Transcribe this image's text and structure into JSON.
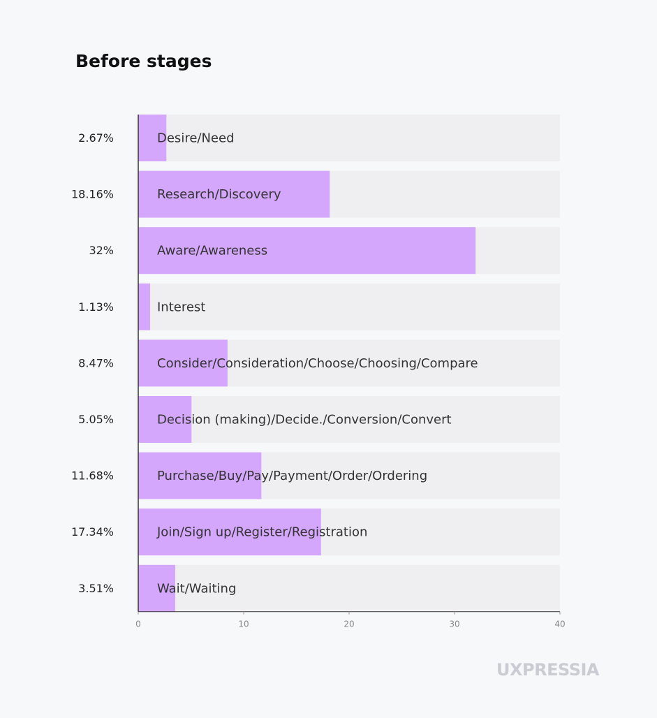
{
  "chart_data": {
    "type": "barh",
    "title": "Before stages",
    "categories": [
      "Desire/Need",
      "Research/Discovery",
      "Aware/Awareness",
      "Interest",
      "Consider/Consideration/Choose/Choosing/Compare",
      "Decision (making)/Decide./Conversion/Convert",
      "Purchase/Buy/Pay/Payment/Order/Ordering",
      "Join/Sign up/Register/Registration",
      "Wait/Waiting"
    ],
    "values": [
      2.67,
      18.16,
      32,
      1.13,
      8.47,
      5.05,
      11.68,
      17.34,
      3.51
    ],
    "value_labels": [
      "2.67%",
      "18.16%",
      "32%",
      "1.13%",
      "8.47%",
      "5.05%",
      "11.68%",
      "17.34%",
      "3.51%"
    ],
    "color": "#d4a6fc",
    "xlim": [
      0,
      40
    ],
    "xticks": [
      0,
      10,
      20,
      30,
      40
    ],
    "watermark": "UXPRESSIA"
  }
}
